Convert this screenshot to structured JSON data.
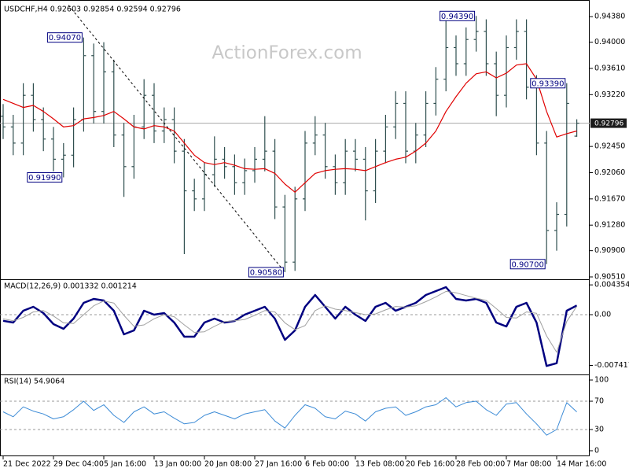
{
  "chart_data": [
    {
      "type": "ohlc",
      "title": "USDCHF,H4  0.92603 0.92854 0.92594 0.92796",
      "watermark": "ActionForex.com",
      "color": "#2f4f4f",
      "open": [
        0.929,
        0.9274,
        0.925,
        0.9321,
        0.9285,
        0.9256,
        0.9226,
        0.9232,
        0.9285,
        0.938,
        0.9297,
        0.9356,
        0.9262,
        0.9215,
        0.9274,
        0.9321,
        0.9268,
        0.9285,
        0.9238,
        0.9179,
        0.9167,
        0.9203,
        0.9226,
        0.9215,
        0.9191,
        0.9209,
        0.9226,
        0.9238,
        0.9155,
        0.9073,
        0.9167,
        0.925,
        0.9262,
        0.9215,
        0.9191,
        0.9238,
        0.9226,
        0.9179,
        0.9238,
        0.9274,
        0.9309,
        0.9238,
        0.9262,
        0.9309,
        0.9345,
        0.9392,
        0.9368,
        0.9404,
        0.9416,
        0.9368,
        0.9321,
        0.9392,
        0.9416,
        0.9333,
        0.925,
        0.912,
        0.9144,
        0.92603
      ],
      "high": [
        0.9308,
        0.9292,
        0.9339,
        0.9339,
        0.9303,
        0.9274,
        0.925,
        0.9303,
        0.9407,
        0.9398,
        0.94,
        0.9374,
        0.928,
        0.9292,
        0.9345,
        0.9339,
        0.9303,
        0.9303,
        0.9256,
        0.9197,
        0.9221,
        0.926,
        0.9244,
        0.9233,
        0.9227,
        0.9244,
        0.929,
        0.9256,
        0.9173,
        0.9185,
        0.9268,
        0.929,
        0.928,
        0.9233,
        0.9256,
        0.9256,
        0.9244,
        0.9256,
        0.9292,
        0.9327,
        0.9327,
        0.928,
        0.9327,
        0.9363,
        0.9439,
        0.941,
        0.9422,
        0.9439,
        0.9434,
        0.9386,
        0.941,
        0.9434,
        0.9434,
        0.9351,
        0.9268,
        0.9162,
        0.9339,
        0.92854
      ],
      "low": [
        0.9256,
        0.9232,
        0.9232,
        0.9267,
        0.9238,
        0.9208,
        0.9199,
        0.9214,
        0.9267,
        0.9279,
        0.9279,
        0.9244,
        0.917,
        0.9197,
        0.9256,
        0.925,
        0.925,
        0.922,
        0.9085,
        0.9149,
        0.9149,
        0.9185,
        0.9197,
        0.9173,
        0.9173,
        0.9191,
        0.9208,
        0.9137,
        0.9058,
        0.906,
        0.9149,
        0.9232,
        0.9197,
        0.9173,
        0.9173,
        0.9208,
        0.9135,
        0.9161,
        0.922,
        0.9256,
        0.922,
        0.922,
        0.9244,
        0.9291,
        0.9327,
        0.935,
        0.935,
        0.9386,
        0.935,
        0.929,
        0.9303,
        0.9374,
        0.9315,
        0.9232,
        0.907,
        0.909,
        0.9126,
        0.92594
      ],
      "close": [
        0.9274,
        0.925,
        0.9321,
        0.9285,
        0.9256,
        0.9226,
        0.9232,
        0.9285,
        0.938,
        0.9297,
        0.9356,
        0.9262,
        0.9215,
        0.9274,
        0.9321,
        0.9268,
        0.9285,
        0.9238,
        0.9179,
        0.9167,
        0.9203,
        0.9226,
        0.9215,
        0.9191,
        0.9209,
        0.9226,
        0.9238,
        0.9155,
        0.9073,
        0.9167,
        0.925,
        0.9262,
        0.9215,
        0.9191,
        0.9238,
        0.9226,
        0.9179,
        0.9238,
        0.9274,
        0.9309,
        0.9238,
        0.9262,
        0.9309,
        0.9345,
        0.9392,
        0.9368,
        0.9404,
        0.9416,
        0.9368,
        0.9321,
        0.9392,
        0.9416,
        0.9333,
        0.925,
        0.912,
        0.9144,
        0.9309,
        0.92796
      ],
      "series": [
        {
          "color": "#e00000",
          "values": [
            0.9315,
            0.9309,
            0.9303,
            0.9306,
            0.9297,
            0.9286,
            0.9274,
            0.9276,
            0.9286,
            0.9288,
            0.9291,
            0.9297,
            0.9286,
            0.9274,
            0.9271,
            0.9276,
            0.9274,
            0.9268,
            0.925,
            0.9232,
            0.9221,
            0.9218,
            0.9221,
            0.9217,
            0.9212,
            0.9211,
            0.9212,
            0.9205,
            0.9189,
            0.9177,
            0.9191,
            0.9205,
            0.9209,
            0.9211,
            0.9212,
            0.9211,
            0.9209,
            0.9215,
            0.9221,
            0.9226,
            0.9229,
            0.9238,
            0.925,
            0.9268,
            0.9297,
            0.9319,
            0.9339,
            0.9353,
            0.9356,
            0.9347,
            0.9354,
            0.9366,
            0.9368,
            0.9345,
            0.9297,
            0.9259,
            0.9264,
            0.9268
          ]
        }
      ],
      "annotations": [
        {
          "bar": 8,
          "value": 0.9407,
          "label": "0.94070"
        },
        {
          "bar": 6,
          "value": 0.9199,
          "label": "0.91990"
        },
        {
          "bar": 28,
          "value": 0.9058,
          "label": "0.90580"
        },
        {
          "bar": 47,
          "value": 0.9439,
          "label": "0.94390"
        },
        {
          "bar": 56,
          "value": 0.9339,
          "label": "0.93390"
        },
        {
          "bar": 54,
          "value": 0.907,
          "label": "0.90700"
        }
      ],
      "trendline": {
        "from": {
          "bar": 6.5,
          "value": 0.9455
        },
        "to": {
          "bar": 28,
          "value": 0.9058
        }
      },
      "last": {
        "value": 0.92796,
        "label": "0.92796"
      },
      "ylim": [
        0.90475,
        0.94569
      ],
      "yticks": [
        {
          "value": 0.9438,
          "label": "0.94380"
        },
        {
          "value": 0.94,
          "label": "0.94000"
        },
        {
          "value": 0.9361,
          "label": "0.93610"
        },
        {
          "value": 0.9322,
          "label": "0.93220"
        },
        {
          "value": 0.9245,
          "label": "0.92450"
        },
        {
          "value": 0.9206,
          "label": "0.92060"
        },
        {
          "value": 0.9167,
          "label": "0.91670"
        },
        {
          "value": 0.9128,
          "label": "0.91280"
        },
        {
          "value": 0.909,
          "label": "0.90900"
        },
        {
          "value": 0.9051,
          "label": "0.90510"
        }
      ]
    },
    {
      "type": "line",
      "title": "MACD(12,26,9) 0.001332 0.001214",
      "series": [
        {
          "color": "#000080",
          "width": 2.5,
          "values": [
            -0.0009,
            -0.00115,
            0.00058,
            0.00115,
            0.00023,
            -0.00138,
            -0.00207,
            -0.00058,
            0.00173,
            0.0023,
            0.00207,
            0.00058,
            -0.00288,
            -0.0023,
            0.00058,
            0,
            0.00023,
            -0.00115,
            -0.00322,
            -0.00322,
            -0.00115,
            -0.00058,
            -0.00115,
            -0.00092,
            0,
            0.00058,
            0.00115,
            -0.00058,
            -0.00368,
            -0.0023,
            0.00115,
            0.00288,
            0.00115,
            -0.00058,
            0.00115,
            0,
            -0.00092,
            0.00115,
            0.00173,
            0.00058,
            0.00115,
            0.00173,
            0.00288,
            0.00345,
            0.00403,
            0.0023,
            0.00207,
            0.0023,
            0.00173,
            -0.00115,
            -0.00173,
            0.00115,
            0.00173,
            -0.00115,
            -0.0075,
            -0.0071,
            0.00058,
            0.001332
          ]
        },
        {
          "color": "#a0a0a0",
          "width": 1,
          "values": [
            -0.0006,
            -0.0009,
            -0.0004,
            0.0004,
            0.0006,
            -0.0002,
            -0.0012,
            -0.0013,
            0,
            0.0013,
            0.002,
            0.0017,
            -0.0001,
            -0.0017,
            -0.0015,
            -0.0006,
            0,
            -0.0003,
            -0.0015,
            -0.0026,
            -0.0025,
            -0.0017,
            -0.001,
            -0.0009,
            -0.0007,
            -0.0001,
            0.0006,
            0.0004,
            -0.0012,
            -0.0022,
            -0.0016,
            0.0006,
            0.0013,
            0.0008,
            0.0006,
            0.0003,
            0,
            0.0001,
            0.0007,
            0.0012,
            0.0011,
            0.0013,
            0.0019,
            0.0026,
            0.0034,
            0.0032,
            0.0028,
            0.0024,
            0.0021,
            0.0009,
            -0.0004,
            -0.0005,
            0.0004,
            0.0002,
            -0.0031,
            -0.0055,
            -0.001,
            0.001214
          ]
        }
      ],
      "levels": [
        0
      ],
      "ylim": [
        -0.00874,
        0.004945
      ],
      "yticks": [
        0.004354,
        {
          "value": 0,
          "label": "0.00"
        },
        -0.007417
      ]
    },
    {
      "type": "line",
      "title": "RSI(14) 54.9064",
      "series": [
        {
          "color": "#3c8bd6",
          "width": 1,
          "values": [
            55,
            48,
            62,
            56,
            52,
            45,
            48,
            58,
            70,
            57,
            65,
            50,
            40,
            55,
            62,
            52,
            55,
            46,
            38,
            40,
            50,
            55,
            50,
            45,
            52,
            55,
            58,
            42,
            32,
            50,
            65,
            60,
            48,
            45,
            56,
            52,
            42,
            55,
            60,
            62,
            50,
            55,
            62,
            65,
            75,
            62,
            68,
            70,
            58,
            50,
            66,
            68,
            52,
            38,
            22,
            30,
            68,
            54.9064
          ]
        }
      ],
      "levels": [
        70,
        30
      ],
      "ylim": [
        -7.8,
        105.6
      ],
      "yticks": [
        100,
        70,
        30,
        0
      ],
      "categories": [
        "21 Dec 2022",
        null,
        null,
        null,
        null,
        "29 Dec 04:00",
        null,
        null,
        null,
        null,
        "5 Jan 16:00",
        null,
        null,
        null,
        null,
        "13 Jan 00:00",
        null,
        null,
        null,
        null,
        "20 Jan 08:00",
        null,
        null,
        null,
        null,
        "27 Jan 16:00",
        null,
        null,
        null,
        null,
        "6 Feb 00:00",
        null,
        null,
        null,
        null,
        "13 Feb 08:00",
        null,
        null,
        null,
        null,
        "20 Feb 16:00",
        null,
        null,
        null,
        null,
        "28 Feb 00:00",
        null,
        null,
        null,
        null,
        "7 Mar 08:00",
        null,
        null,
        null,
        null,
        "14 Mar 16:00",
        null,
        null
      ]
    }
  ]
}
